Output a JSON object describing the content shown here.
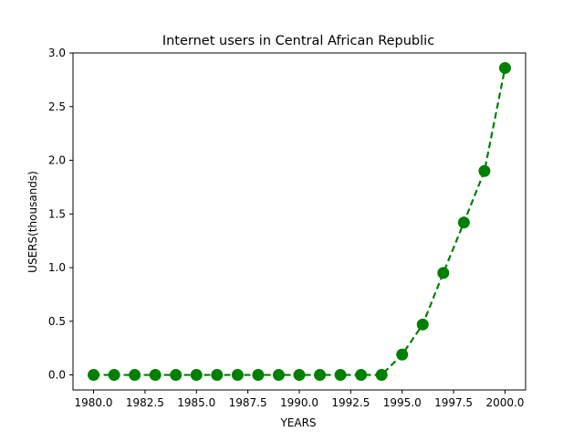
{
  "chart_data": {
    "type": "line",
    "title": "Internet users in Central African Republic",
    "xlabel": "YEARS",
    "ylabel": "USERS(thousands)",
    "xlim": [
      1979.0,
      2001.0
    ],
    "ylim": [
      -0.14,
      3.0
    ],
    "xticks": [
      1980.0,
      1982.5,
      1985.0,
      1987.5,
      1990.0,
      1992.5,
      1995.0,
      1997.5,
      2000.0
    ],
    "xtick_labels": [
      "1980.0",
      "1982.5",
      "1985.0",
      "1987.5",
      "1990.0",
      "1992.5",
      "1995.0",
      "1997.5",
      "2000.0"
    ],
    "yticks": [
      0.0,
      0.5,
      1.0,
      1.5,
      2.0,
      2.5,
      3.0
    ],
    "ytick_labels": [
      "0.0",
      "0.5",
      "1.0",
      "1.5",
      "2.0",
      "2.5",
      "3.0"
    ],
    "grid": false,
    "line_style": "dashed",
    "marker": "circle",
    "color": "#008000",
    "series": [
      {
        "x": [
          1980,
          1981,
          1982,
          1983,
          1984,
          1985,
          1986,
          1987,
          1988,
          1989,
          1990,
          1991,
          1992,
          1993,
          1994,
          1995,
          1996,
          1997,
          1998,
          1999,
          2000
        ],
        "values": [
          0,
          0,
          0,
          0,
          0,
          0,
          0,
          0,
          0,
          0,
          0,
          0,
          0,
          0,
          0,
          0.19,
          0.47,
          0.95,
          1.42,
          1.9,
          2.86
        ]
      }
    ]
  }
}
